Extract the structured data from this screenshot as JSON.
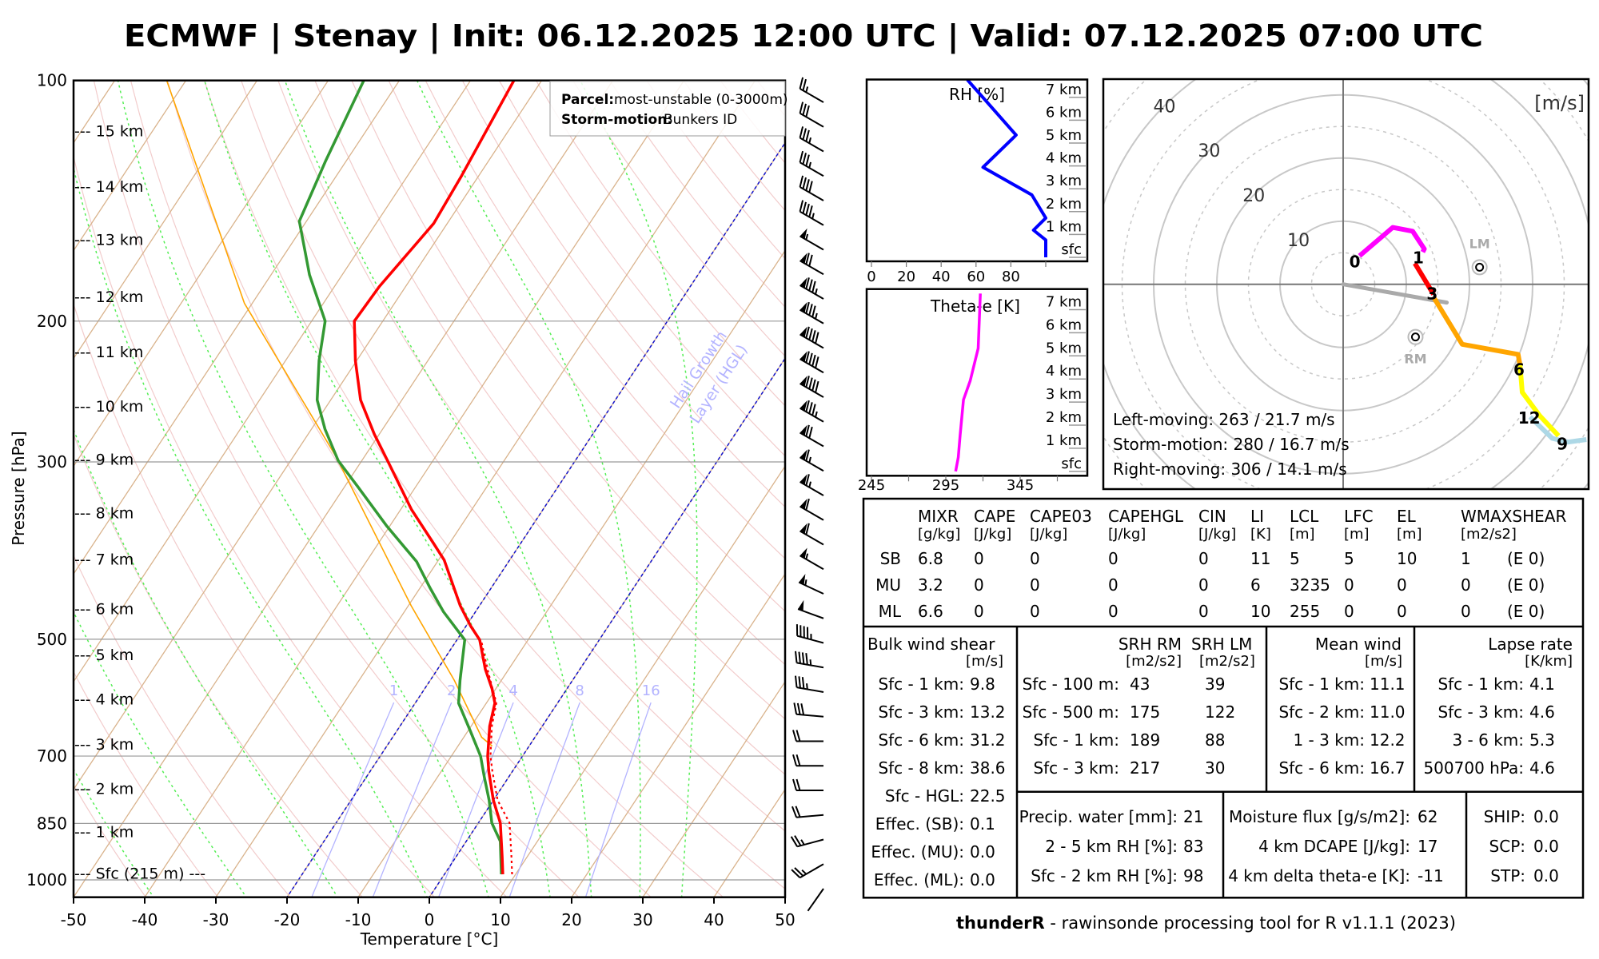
{
  "title": "ECMWF | Stenay | Init: 06.12.2025 12:00 UTC | Valid: 07.12.2025 07:00 UTC",
  "footer": {
    "bold": "thunderR",
    "rest": " - rawinsonde processing tool for R v1.1.1 (2023)"
  },
  "chart_data": [
    {
      "type": "line",
      "name": "skew-T log-P diagram",
      "xlabel": "Temperature [°C]",
      "ylabel": "Pressure [hPa]",
      "xlim": [
        -50,
        50
      ],
      "ylim": [
        1052,
        100
      ],
      "xticks": [
        -50,
        -40,
        -30,
        -20,
        -10,
        0,
        10,
        20,
        30,
        40,
        50
      ],
      "yticks": [
        100,
        200,
        300,
        500,
        700,
        850,
        1000
      ],
      "grid": true,
      "height_labels": [
        "--- 15 km",
        "--- 14 km",
        "--- 13 km",
        "--- 12 km",
        "--- 11 km",
        "--- 10 km",
        "--- 9 km",
        "--- 8 km",
        "--- 7 km",
        "--- 6 km",
        "--- 5 km",
        "--- 4 km",
        "--- 3 km",
        "--- 2 km",
        "--- 1 km",
        "--- Sfc (215 m) ---"
      ],
      "series": [
        {
          "name": "Temperature",
          "color": "#ff0000",
          "pressure": [
            984,
            936,
            849,
            795,
            732,
            700,
            642,
            601,
            577,
            545,
            501,
            481,
            454,
            398,
            379,
            344,
            301,
            277,
            251,
            224,
            200,
            181,
            151,
            132,
            100
          ],
          "values": [
            8.2,
            6.5,
            3.1,
            0.0,
            -3.3,
            -4.9,
            -7.4,
            -8.8,
            -10.5,
            -13.3,
            -16.8,
            -19.4,
            -22.7,
            -29.2,
            -32.3,
            -38.5,
            -46.0,
            -50.7,
            -55.8,
            -60.2,
            -64.0,
            -63.7,
            -61.9,
            -62.4,
            -63.9
          ]
        },
        {
          "name": "Dewpoint",
          "color": "#339933",
          "pressure": [
            984,
            936,
            895,
            849,
            795,
            744,
            700,
            652,
            601,
            563,
            501,
            462,
            432,
            400,
            361,
            322,
            299,
            273,
            251,
            224,
            200,
            175,
            150,
            126,
            100
          ],
          "values": [
            8.0,
            6.3,
            4.8,
            1.9,
            -0.6,
            -3.4,
            -5.9,
            -9.6,
            -13.9,
            -15.8,
            -18.9,
            -24.5,
            -28.5,
            -32.9,
            -40.4,
            -48.2,
            -53.3,
            -58.1,
            -61.9,
            -65.3,
            -68.1,
            -74.6,
            -81.0,
            -82.9,
            -85.0
          ]
        },
        {
          "name": "Parcel",
          "color": "#ffa500",
          "pressure": [
            680,
            663,
            563,
            454,
            296,
            190,
            100
          ],
          "values": [
            -5.2,
            -7.5,
            -16.6,
            -29.6,
            -53.9,
            -81.1,
            -112.7
          ]
        },
        {
          "name": "Virtual temperature",
          "color": "#ff0000",
          "pressure": [
            984,
            936,
            849,
            795,
            732,
            700,
            642,
            601,
            545,
            501
          ],
          "values": [
            9.5,
            7.8,
            4.4,
            0.6,
            -2.8,
            -4.5,
            -7.1,
            -8.6,
            -13.0,
            -16.6
          ]
        }
      ],
      "mixing_ratio_lines": [
        1,
        2,
        4,
        8,
        16
      ],
      "hgl_isotherms": [
        -20,
        0
      ],
      "hgl_label": [
        "Hail Growth",
        "Layer (HGL)"
      ],
      "legend": {
        "parcel_label": "Parcel:",
        "parcel_value": "most-unstable (0-3000m)",
        "storm_label": "Storm-motion:",
        "storm_value": "Bunkers ID"
      },
      "wind_barbs": {
        "speed_kt": [
          25,
          30,
          35,
          35,
          40,
          45,
          55,
          70,
          85,
          85,
          90,
          90,
          90,
          85,
          70,
          65,
          65,
          60,
          60,
          55,
          55,
          50,
          45,
          45,
          35,
          30,
          20,
          20,
          20,
          20,
          25,
          25,
          2
        ],
        "direction_deg": [
          300,
          300,
          300,
          300,
          300,
          300,
          300,
          300,
          300,
          300,
          300,
          300,
          300,
          300,
          300,
          300,
          300,
          300,
          300,
          300,
          295,
          290,
          285,
          280,
          280,
          275,
          270,
          270,
          270,
          265,
          255,
          240,
          215
        ]
      }
    },
    {
      "type": "line",
      "name": "RH profile",
      "title": "RH [%]",
      "xlim": [
        -3,
        124
      ],
      "xticks": [
        0,
        20,
        40,
        60,
        80,
        100
      ],
      "xtick_labels": [
        "0",
        "20",
        "40",
        "60",
        "80"
      ],
      "y_labels": [
        "sfc",
        "1 km",
        "2 km",
        "3 km",
        "4 km",
        "5 km",
        "6 km",
        "7 km"
      ],
      "color": "#0000ff",
      "height_km": [
        0,
        0.76,
        1.19,
        1.72,
        2.73,
        3.94,
        5.35,
        7.77
      ],
      "values": [
        100,
        100,
        93,
        100,
        92,
        64,
        83,
        55
      ]
    },
    {
      "type": "line",
      "name": "Theta-e profile",
      "title": "Theta-e [K]",
      "xlim": [
        241,
        390
      ],
      "xticks": [
        245,
        270,
        295,
        320,
        345,
        370
      ],
      "xtick_labels": [
        "245",
        "295",
        "345"
      ],
      "y_labels": [
        "sfc",
        "1 km",
        "2 km",
        "3 km",
        "4 km",
        "5 km",
        "6 km",
        "7 km"
      ],
      "color": "#ff00ff",
      "height_km": [
        0,
        0.61,
        1.56,
        3.1,
        3.92,
        5.33,
        7.7
      ],
      "values": [
        301.6,
        303.4,
        304.6,
        306.9,
        311.4,
        316.8,
        318.2
      ]
    },
    {
      "type": "line",
      "name": "Hodograph",
      "unit_label": "[m/s]",
      "ring_labels": [
        10,
        20,
        30,
        40
      ],
      "segments": [
        {
          "name": "0-1 km",
          "color": "#ff00ff",
          "points": [
            [
              2.6,
              4.5
            ],
            [
              7.85,
              9.0
            ],
            [
              11.0,
              8.4
            ],
            [
              12.85,
              5.6
            ],
            [
              12.6,
              5.1
            ]
          ]
        },
        {
          "name": "1-3 km",
          "color": "#ff0000",
          "points": [
            [
              11.35,
              3.3
            ],
            [
              13.6,
              -0.4
            ],
            [
              14.3,
              -1.6
            ]
          ]
        },
        {
          "name": "3-6 km",
          "color": "#ffa500",
          "points": [
            [
              14.4,
              -2.2
            ],
            [
              18.85,
              -9.5
            ],
            [
              27.7,
              -11.1
            ],
            [
              28.0,
              -12.8
            ]
          ]
        },
        {
          "name": "9-12 km",
          "color": "#add8e6",
          "points": [
            [
              29.6,
              -21.0
            ],
            [
              33.1,
              -24.4
            ],
            [
              35.6,
              -25.0
            ],
            [
              38.5,
              -24.6
            ]
          ]
        },
        {
          "name": "6-9 km",
          "color": "#ffff00",
          "points": [
            [
              28.0,
              -12.8
            ],
            [
              28.35,
              -17.1
            ],
            [
              31.1,
              -20.8
            ],
            [
              34.1,
              -24.0
            ]
          ]
        }
      ],
      "height_labels": [
        {
          "text": "0",
          "u": 1.85,
          "v": 3.6
        },
        {
          "text": "1",
          "u": 11.9,
          "v": 4.2
        },
        {
          "text": "3",
          "u": 14.1,
          "v": -1.5
        },
        {
          "text": "6",
          "u": 27.85,
          "v": -13.5
        },
        {
          "text": "12",
          "u": 29.45,
          "v": -21.2
        },
        {
          "text": "9",
          "u": 34.7,
          "v": -25.3
        }
      ],
      "storm_motion_vector": [
        16.4,
        -2.9
      ],
      "left_mover": {
        "label": "LM",
        "u": 21.6,
        "v": 2.7
      },
      "right_mover": {
        "label": "RM",
        "u": 11.45,
        "v": -8.35
      },
      "annotations": [
        "Left-moving: 263 / 21.7 m/s",
        "Storm-motion: 280 / 16.7 m/s",
        "Right-moving: 306 / 14.1 m/s"
      ]
    }
  ],
  "table": {
    "main": {
      "headers": [
        "MIXR",
        "CAPE",
        "CAPE03",
        "CAPEHGL",
        "CIN",
        "LI",
        "LCL",
        "LFC",
        "EL",
        "WMAXSHEAR"
      ],
      "units": [
        "[g/kg]",
        "[J/kg]",
        "[J/kg]",
        "[J/kg]",
        "[J/kg]",
        "[K]",
        "[m]",
        "[m]",
        "[m]",
        "[m2/s2]"
      ],
      "rows": [
        {
          "label": "SB",
          "values": [
            "6.8",
            "0",
            "0",
            "0",
            "0",
            "11",
            "5",
            "5",
            "10",
            "1",
            "(E 0)"
          ]
        },
        {
          "label": "MU",
          "values": [
            "3.2",
            "0",
            "0",
            "0",
            "0",
            "6",
            "3235",
            "0",
            "0",
            "0",
            "(E 0)"
          ]
        },
        {
          "label": "ML",
          "values": [
            "6.6",
            "0",
            "0",
            "0",
            "0",
            "10",
            "255",
            "0",
            "0",
            "0",
            "(E 0)"
          ]
        }
      ]
    },
    "bulk_shear": {
      "title": "Bulk wind shear",
      "unit": "[m/s]",
      "rows": [
        {
          "label": "Sfc - 1 km:",
          "value": "9.8"
        },
        {
          "label": "Sfc - 3 km:",
          "value": "13.2"
        },
        {
          "label": "Sfc - 6 km:",
          "value": "31.2"
        },
        {
          "label": "Sfc - 8 km:",
          "value": "38.6"
        },
        {
          "label": "Sfc - HGL:",
          "value": "22.5"
        },
        {
          "label": "Effec. (SB):",
          "value": "0.1"
        },
        {
          "label": "Effec. (MU):",
          "value": "0.0"
        },
        {
          "label": "Effec. (ML):",
          "value": "0.0"
        }
      ]
    },
    "srh": {
      "headers": [
        "SRH RM",
        "SRH LM"
      ],
      "units": [
        "[m2/s2]",
        "[m2/s2]"
      ],
      "rows": [
        {
          "label": "Sfc - 100 m:",
          "rm": "43",
          "lm": "39"
        },
        {
          "label": "Sfc - 500 m:",
          "rm": "175",
          "lm": "122"
        },
        {
          "label": "Sfc - 1 km:",
          "rm": "189",
          "lm": "88"
        },
        {
          "label": "Sfc - 3 km:",
          "rm": "217",
          "lm": "30"
        }
      ]
    },
    "mean_wind": {
      "title": "Mean wind",
      "unit": "[m/s]",
      "rows": [
        {
          "label": "Sfc - 1 km:",
          "value": "11.1"
        },
        {
          "label": "Sfc - 2 km:",
          "value": "11.0"
        },
        {
          "label": "1 - 3 km:",
          "value": "12.2"
        },
        {
          "label": "Sfc - 6 km:",
          "value": "16.7"
        }
      ]
    },
    "lapse_rate": {
      "title": "Lapse rate",
      "unit": "[K/km]",
      "rows": [
        {
          "label": "Sfc - 1 km:",
          "value": "4.1"
        },
        {
          "label": "Sfc - 3 km:",
          "value": "4.6"
        },
        {
          "label": "3 - 6 km:",
          "value": "5.3"
        },
        {
          "label": "500700 hPa:",
          "value": "4.6"
        }
      ]
    },
    "moisture": {
      "rows": [
        {
          "label": "Precip. water [mm]:",
          "value": "21"
        },
        {
          "label": "2 - 5 km RH [%]:",
          "value": "83"
        },
        {
          "label": "Sfc - 2 km RH [%]:",
          "value": "98"
        }
      ]
    },
    "flux": {
      "rows": [
        {
          "label": "Moisture flux [g/s/m2]:",
          "value": "62"
        },
        {
          "label": "4 km DCAPE [J/kg]:",
          "value": "17"
        },
        {
          "label": "4 km delta theta-e [K]:",
          "value": "-11"
        }
      ]
    },
    "indices": {
      "rows": [
        {
          "label": "SHIP:",
          "value": "0.0"
        },
        {
          "label": "SCP:",
          "value": "0.0"
        },
        {
          "label": "STP:",
          "value": "0.0"
        }
      ]
    }
  }
}
